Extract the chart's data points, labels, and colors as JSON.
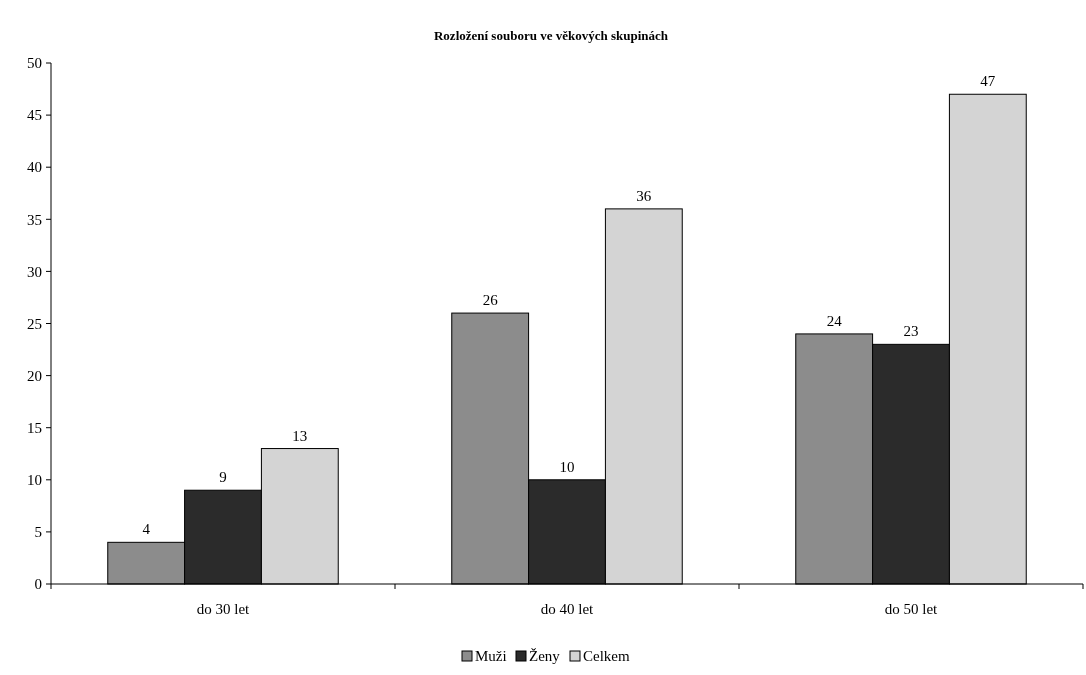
{
  "chart_data": {
    "type": "bar",
    "title": "Rozložení souboru ve věkových skupinách",
    "categories": [
      "do 30 let",
      "do 40 let",
      "do 50 let"
    ],
    "series": [
      {
        "name": "Muži",
        "color": "#8c8c8c",
        "values": [
          4,
          26,
          24
        ]
      },
      {
        "name": "Ženy",
        "color": "#2b2b2b",
        "values": [
          9,
          10,
          23
        ]
      },
      {
        "name": "Celkem",
        "color": "#d4d4d4",
        "values": [
          13,
          36,
          47
        ]
      }
    ],
    "ylim": [
      0,
      50
    ],
    "yticks": [
      0,
      5,
      10,
      15,
      20,
      25,
      30,
      35,
      40,
      45,
      50
    ],
    "grid": false,
    "legend": "bottom",
    "data_labels": true
  }
}
